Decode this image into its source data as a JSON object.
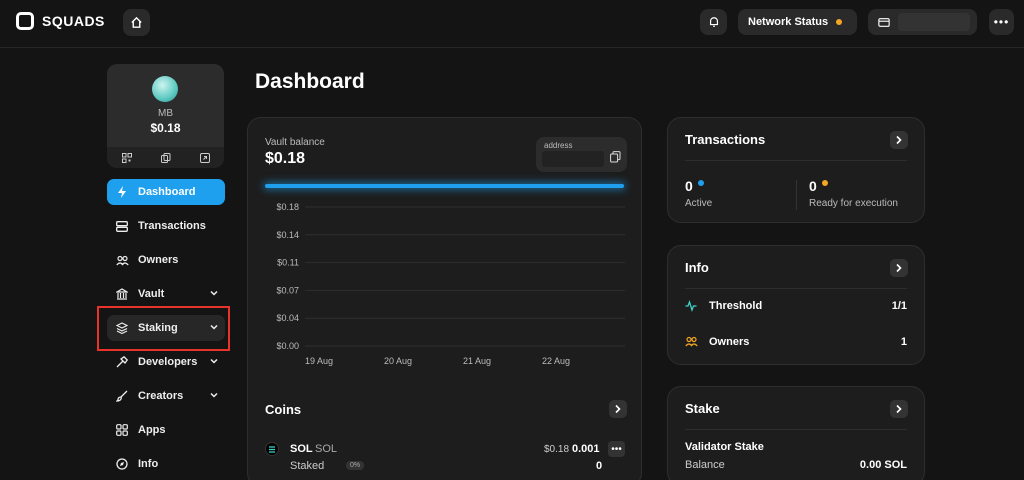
{
  "app": {
    "logo_text": "SQUADS"
  },
  "header": {
    "network_status_label": "Network Status",
    "network_status_color": "#f5a623",
    "icons": [
      "home-icon",
      "bell-icon",
      "wallet-icon",
      "more-icon"
    ]
  },
  "account": {
    "name": "MB",
    "balance": "$0.18"
  },
  "sidebar": {
    "items": [
      {
        "label": "Dashboard",
        "icon": "bolt-icon",
        "active": true
      },
      {
        "label": "Transactions",
        "icon": "transactions-icon"
      },
      {
        "label": "Owners",
        "icon": "owners-icon"
      },
      {
        "label": "Vault",
        "icon": "bank-icon",
        "expandable": true
      },
      {
        "label": "Staking",
        "icon": "layers-icon",
        "expandable": true,
        "highlighted": true
      },
      {
        "label": "Developers",
        "icon": "hammer-icon",
        "expandable": true
      },
      {
        "label": "Creators",
        "icon": "brush-icon",
        "expandable": true
      },
      {
        "label": "Apps",
        "icon": "apps-icon"
      },
      {
        "label": "Info",
        "icon": "compass-icon"
      }
    ]
  },
  "page": {
    "title": "Dashboard"
  },
  "vault": {
    "label": "Vault balance",
    "balance": "$0.18",
    "address_label": "address",
    "bar_color": "#1ea0ef"
  },
  "chart_data": {
    "type": "line",
    "y_ticks": [
      "$0.18",
      "$0.14",
      "$0.11",
      "$0.07",
      "$0.04",
      "$0.00"
    ],
    "x_ticks": [
      "19 Aug",
      "20 Aug",
      "21 Aug",
      "22 Aug"
    ],
    "ylim": [
      0,
      0.18
    ],
    "grid": true
  },
  "coins": {
    "title": "Coins",
    "items": [
      {
        "name": "SOL",
        "symbol": "SOL",
        "usd": "$0.18",
        "amount": "0.001",
        "staked_label": "Staked",
        "staked_pct": "0%",
        "staked_amount": "0"
      }
    ]
  },
  "transactions": {
    "title": "Transactions",
    "active_count": "0",
    "active_label": "Active",
    "active_color": "#1ea0ef",
    "ready_count": "0",
    "ready_label": "Ready for execution",
    "ready_color": "#f5a623"
  },
  "info": {
    "title": "Info",
    "threshold_label": "Threshold",
    "threshold_value": "1/1",
    "owners_label": "Owners",
    "owners_value": "1"
  },
  "stake": {
    "title": "Stake",
    "validator_label": "Validator Stake",
    "balance_label": "Balance",
    "balance_value": "0.00 SOL"
  }
}
